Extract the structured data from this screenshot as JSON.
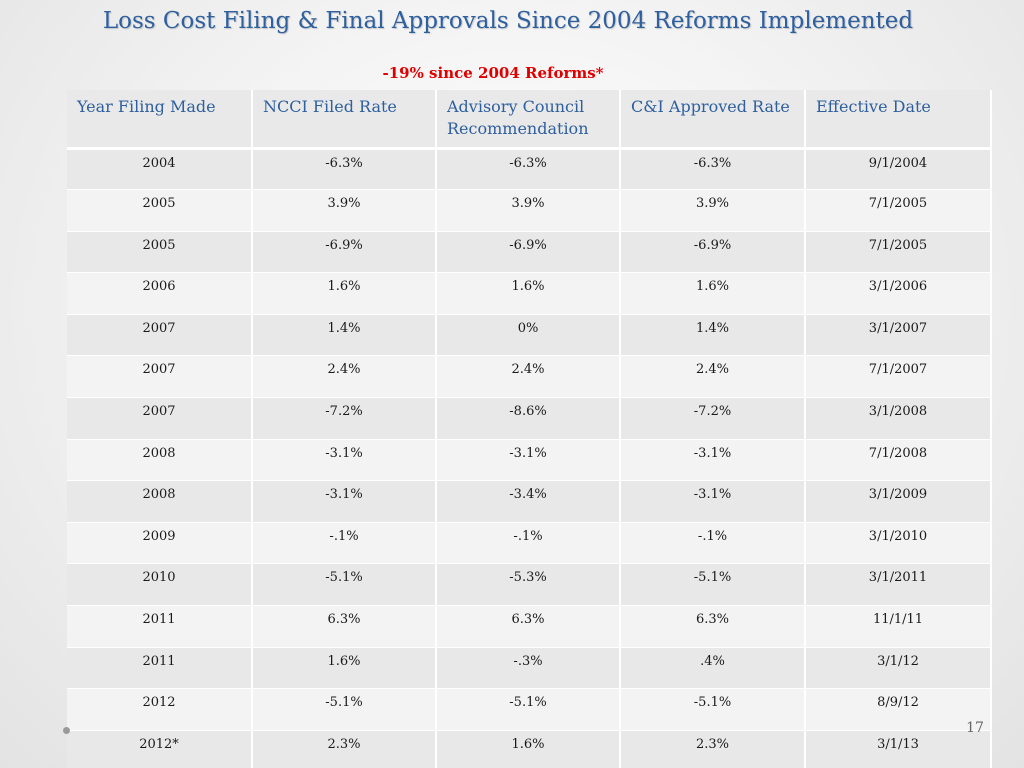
{
  "slide": {
    "title": "Loss Cost Filing & Final Approvals Since 2004 Reforms Implemented",
    "subtitle": "-19% since 2004 Reforms*",
    "page_number": "17"
  },
  "colors": {
    "title": "#2e5f9e",
    "subtitle": "#e00000",
    "header_text": "#2e5f9e",
    "row_odd": "#e8e8e8",
    "row_even": "#f3f3f3"
  },
  "table": {
    "headers": [
      "Year Filing Made",
      "NCCI Filed Rate",
      "Advisory Council Recommendation",
      "C&I Approved Rate",
      "Effective Date"
    ],
    "rows": [
      [
        "2004",
        "-6.3%",
        "-6.3%",
        "-6.3%",
        "9/1/2004"
      ],
      [
        "2005",
        "3.9%",
        "3.9%",
        "3.9%",
        "7/1/2005"
      ],
      [
        "2005",
        "-6.9%",
        "-6.9%",
        "-6.9%",
        "7/1/2005"
      ],
      [
        "2006",
        "1.6%",
        "1.6%",
        "1.6%",
        "3/1/2006"
      ],
      [
        "2007",
        "1.4%",
        "0%",
        "1.4%",
        "3/1/2007"
      ],
      [
        "2007",
        "2.4%",
        "2.4%",
        "2.4%",
        "7/1/2007"
      ],
      [
        "2007",
        "-7.2%",
        "-8.6%",
        "-7.2%",
        "3/1/2008"
      ],
      [
        "2008",
        "-3.1%",
        "-3.1%",
        "-3.1%",
        "7/1/2008"
      ],
      [
        "2008",
        "-3.1%",
        "-3.4%",
        "-3.1%",
        "3/1/2009"
      ],
      [
        "2009",
        "-.1%",
        "-.1%",
        "-.1%",
        "3/1/2010"
      ],
      [
        "2010",
        "-5.1%",
        "-5.3%",
        "-5.1%",
        "3/1/2011"
      ],
      [
        "2011",
        "6.3%",
        "6.3%",
        "6.3%",
        "11/1/11"
      ],
      [
        "2011",
        "1.6%",
        "-.3%",
        ".4%",
        "3/1/12"
      ],
      [
        "2012",
        "-5.1%",
        "-5.1%",
        "-5.1%",
        "8/9/12"
      ],
      [
        "2012*",
        "2.3%",
        "1.6%",
        "2.3%",
        "3/1/13"
      ]
    ]
  }
}
